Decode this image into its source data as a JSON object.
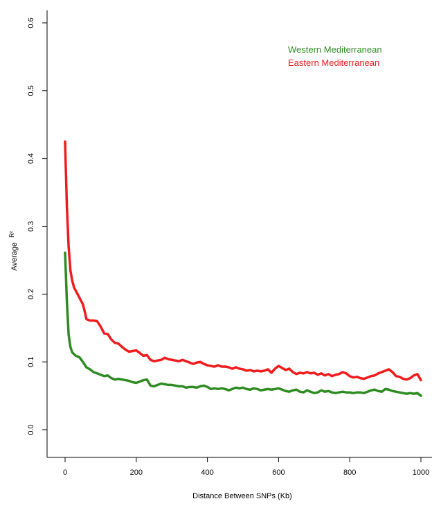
{
  "chart_data": {
    "type": "line",
    "xlabel": "Distance Between SNPs (Kb)",
    "ylabel_main": "Average",
    "ylabel_sup": "R²",
    "xlim": [
      0,
      1000
    ],
    "ylim": [
      0,
      0.6
    ],
    "xticks": [
      "0",
      "200",
      "400",
      "600",
      "800",
      "1000"
    ],
    "yticks": [
      "0.0",
      "0.1",
      "0.2",
      "0.3",
      "0.4",
      "0.5",
      "0.6"
    ],
    "grid": false,
    "legend_position": "top-right",
    "series": [
      {
        "name": "Western Mediterranean",
        "color": "#2e8b22",
        "x": [
          0,
          5,
          10,
          15,
          20,
          30,
          40,
          50,
          60,
          70,
          80,
          90,
          100,
          110,
          120,
          130,
          140,
          150,
          160,
          170,
          180,
          190,
          200,
          210,
          220,
          230,
          240,
          250,
          260,
          270,
          280,
          290,
          300,
          310,
          320,
          330,
          340,
          350,
          360,
          370,
          380,
          390,
          400,
          410,
          420,
          430,
          440,
          450,
          460,
          470,
          480,
          490,
          500,
          510,
          520,
          530,
          540,
          550,
          560,
          570,
          580,
          590,
          600,
          610,
          620,
          630,
          640,
          650,
          660,
          670,
          680,
          690,
          700,
          710,
          720,
          730,
          740,
          750,
          760,
          770,
          780,
          790,
          800,
          810,
          820,
          830,
          840,
          850,
          860,
          870,
          880,
          890,
          900,
          910,
          920,
          930,
          940,
          950,
          960,
          970,
          980,
          990,
          1000
        ],
        "values": [
          0.261,
          0.19,
          0.14,
          0.122,
          0.114,
          0.109,
          0.107,
          0.1,
          0.092,
          0.089,
          0.085,
          0.083,
          0.081,
          0.079,
          0.08,
          0.076,
          0.074,
          0.075,
          0.074,
          0.073,
          0.072,
          0.07,
          0.069,
          0.071,
          0.073,
          0.074,
          0.065,
          0.064,
          0.066,
          0.068,
          0.067,
          0.066,
          0.066,
          0.065,
          0.064,
          0.064,
          0.062,
          0.063,
          0.063,
          0.062,
          0.064,
          0.065,
          0.063,
          0.06,
          0.061,
          0.06,
          0.061,
          0.06,
          0.058,
          0.06,
          0.062,
          0.061,
          0.062,
          0.06,
          0.059,
          0.061,
          0.06,
          0.058,
          0.059,
          0.06,
          0.059,
          0.06,
          0.061,
          0.059,
          0.057,
          0.056,
          0.058,
          0.059,
          0.056,
          0.055,
          0.058,
          0.056,
          0.054,
          0.055,
          0.058,
          0.056,
          0.057,
          0.055,
          0.054,
          0.055,
          0.056,
          0.055,
          0.055,
          0.054,
          0.055,
          0.055,
          0.054,
          0.056,
          0.058,
          0.059,
          0.057,
          0.056,
          0.06,
          0.059,
          0.057,
          0.056,
          0.055,
          0.054,
          0.053,
          0.054,
          0.053,
          0.054,
          0.05
        ]
      },
      {
        "name": "Eastern Mediterranean",
        "color": "#ee1c1c",
        "x": [
          0,
          5,
          10,
          15,
          20,
          25,
          30,
          40,
          50,
          55,
          60,
          70,
          80,
          90,
          100,
          110,
          120,
          130,
          140,
          150,
          160,
          170,
          180,
          190,
          200,
          210,
          220,
          230,
          240,
          250,
          260,
          270,
          280,
          290,
          300,
          310,
          320,
          330,
          340,
          350,
          360,
          370,
          380,
          390,
          400,
          410,
          420,
          430,
          440,
          450,
          460,
          470,
          480,
          490,
          500,
          510,
          520,
          530,
          540,
          550,
          560,
          570,
          580,
          590,
          600,
          610,
          620,
          630,
          640,
          650,
          660,
          670,
          680,
          690,
          700,
          710,
          720,
          730,
          740,
          750,
          760,
          770,
          780,
          790,
          800,
          810,
          820,
          830,
          840,
          850,
          860,
          870,
          880,
          890,
          900,
          910,
          920,
          930,
          940,
          950,
          960,
          970,
          980,
          990,
          1000
        ],
        "values": [
          0.425,
          0.33,
          0.27,
          0.235,
          0.22,
          0.21,
          0.205,
          0.195,
          0.185,
          0.175,
          0.163,
          0.161,
          0.161,
          0.16,
          0.152,
          0.142,
          0.141,
          0.133,
          0.128,
          0.127,
          0.122,
          0.118,
          0.115,
          0.116,
          0.117,
          0.113,
          0.109,
          0.11,
          0.103,
          0.101,
          0.102,
          0.103,
          0.106,
          0.104,
          0.103,
          0.102,
          0.101,
          0.103,
          0.101,
          0.099,
          0.097,
          0.099,
          0.1,
          0.097,
          0.095,
          0.094,
          0.093,
          0.095,
          0.093,
          0.093,
          0.092,
          0.09,
          0.092,
          0.09,
          0.089,
          0.087,
          0.088,
          0.086,
          0.087,
          0.086,
          0.087,
          0.089,
          0.084,
          0.09,
          0.094,
          0.091,
          0.088,
          0.09,
          0.085,
          0.082,
          0.084,
          0.083,
          0.085,
          0.083,
          0.084,
          0.081,
          0.083,
          0.08,
          0.082,
          0.079,
          0.081,
          0.082,
          0.085,
          0.083,
          0.079,
          0.077,
          0.078,
          0.076,
          0.075,
          0.077,
          0.079,
          0.08,
          0.083,
          0.085,
          0.087,
          0.089,
          0.085,
          0.079,
          0.078,
          0.075,
          0.074,
          0.076,
          0.08,
          0.082,
          0.073
        ]
      }
    ]
  }
}
